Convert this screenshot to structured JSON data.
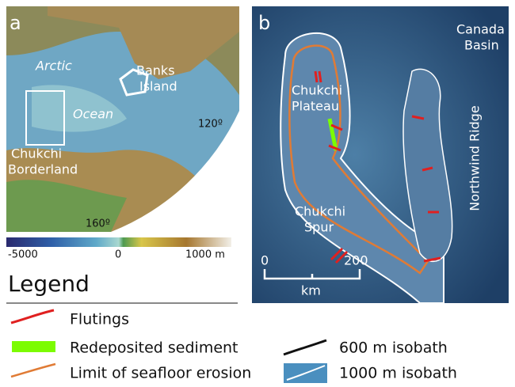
{
  "panel_a": {
    "letter": "a",
    "labels": {
      "arctic": "Arctic",
      "ocean": "Ocean",
      "banks": [
        "Banks",
        "Island"
      ],
      "chukchi": [
        "Chukchi",
        "Borderland"
      ],
      "lon120": "120º",
      "lon160": "160º"
    }
  },
  "colorbar": {
    "labels": [
      "-5000",
      "0",
      "1000 m"
    ]
  },
  "panel_b": {
    "letter": "b",
    "labels": {
      "canada": [
        "Canada",
        "Basin"
      ],
      "plateau": [
        "Chukchi",
        "Plateau"
      ],
      "spur": [
        "Chukchi",
        "Spur"
      ],
      "ridge": "Northwind Ridge"
    },
    "scale": [
      "0",
      "200",
      "km"
    ]
  },
  "legend": {
    "title": "Legend",
    "items": [
      "Flutings",
      "Redeposited sediment",
      "Limit of seafloor erosion",
      "600 m isobath",
      "1000 m isobath"
    ]
  }
}
